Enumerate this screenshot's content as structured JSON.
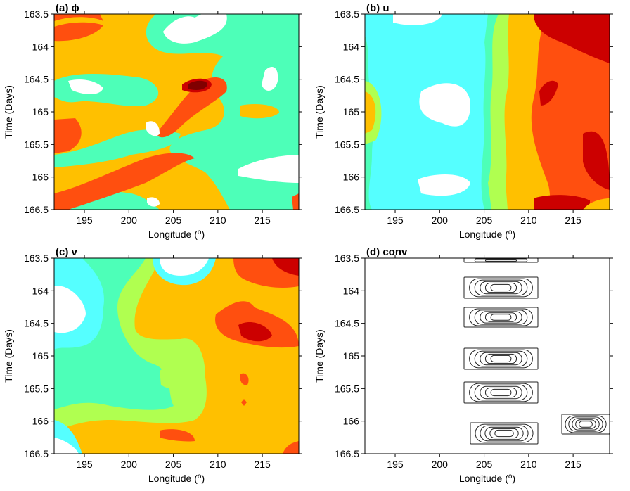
{
  "chart_data": [
    {
      "type": "contour",
      "title": "(a) ϕ",
      "xlabel": [
        "Longitude (",
        "o",
        ")"
      ],
      "ylabel": "Time (Days)",
      "xlim": [
        191.6,
        219.1
      ],
      "xticks": [
        195,
        200,
        205,
        210,
        215
      ],
      "ylim": [
        166.5,
        163.5
      ],
      "yticks": [
        163.5,
        164,
        164.5,
        165,
        165.5,
        166,
        166.5
      ]
    },
    {
      "type": "contour",
      "title": "(b) u",
      "xlabel": [
        "Longitude (",
        "o",
        ")"
      ],
      "ylabel": "Time (Days)",
      "xlim": [
        191.6,
        219.1
      ],
      "xticks": [
        195,
        200,
        205,
        210,
        215
      ],
      "ylim": [
        166.5,
        163.5
      ],
      "yticks": [
        163.5,
        164,
        164.5,
        165,
        165.5,
        166,
        166.5
      ]
    },
    {
      "type": "contour",
      "title": "(c) v",
      "xlabel": [
        "Longitude (",
        "o",
        ")"
      ],
      "ylabel": "Time (Days)",
      "xlim": [
        191.6,
        219.1
      ],
      "xticks": [
        195,
        200,
        205,
        210,
        215
      ],
      "ylim": [
        166.5,
        163.5
      ],
      "yticks": [
        163.5,
        164,
        164.5,
        165,
        165.5,
        166,
        166.5
      ]
    },
    {
      "type": "contour",
      "title": "(d) conv",
      "xlabel": [
        "Longitude (",
        "o",
        ")"
      ],
      "ylabel": "Time (Days)",
      "xlim": [
        191.6,
        219.1
      ],
      "xticks": [
        195,
        200,
        205,
        210,
        215
      ],
      "ylim": [
        166.5,
        163.5
      ],
      "yticks": [
        163.5,
        164,
        164.5,
        165,
        165.5,
        166,
        166.5
      ]
    }
  ]
}
